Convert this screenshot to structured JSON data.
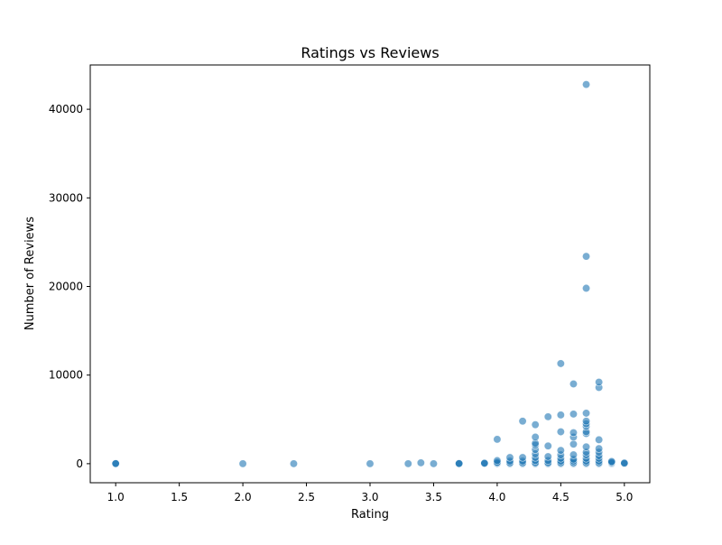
{
  "chart_data": {
    "type": "scatter",
    "title": "Ratings vs Reviews",
    "xlabel": "Rating",
    "ylabel": "Number of Reviews",
    "xlim": [
      0.8,
      5.2
    ],
    "ylim": [
      -2150,
      45000
    ],
    "xticks": [
      1.0,
      1.5,
      2.0,
      2.5,
      3.0,
      3.5,
      4.0,
      4.5,
      5.0
    ],
    "xtick_labels": [
      "1.0",
      "1.5",
      "2.0",
      "2.5",
      "3.0",
      "3.5",
      "4.0",
      "4.5",
      "5.0"
    ],
    "yticks": [
      0,
      10000,
      20000,
      30000,
      40000
    ],
    "ytick_labels": [
      "0",
      "10000",
      "20000",
      "30000",
      "40000"
    ],
    "grid": false,
    "marker_color": "#1f77b4",
    "marker_alpha": 0.6,
    "points": [
      [
        1.0,
        0
      ],
      [
        1.0,
        30
      ],
      [
        1.0,
        10
      ],
      [
        2.0,
        0
      ],
      [
        2.4,
        0
      ],
      [
        3.0,
        0
      ],
      [
        3.3,
        0
      ],
      [
        3.4,
        100
      ],
      [
        3.5,
        0
      ],
      [
        3.7,
        0
      ],
      [
        3.7,
        40
      ],
      [
        3.7,
        10
      ],
      [
        3.9,
        0
      ],
      [
        3.9,
        20
      ],
      [
        3.9,
        60
      ],
      [
        4.0,
        0
      ],
      [
        4.0,
        50
      ],
      [
        4.0,
        150
      ],
      [
        4.0,
        350
      ],
      [
        4.0,
        2750
      ],
      [
        4.1,
        0
      ],
      [
        4.1,
        100
      ],
      [
        4.1,
        300
      ],
      [
        4.1,
        700
      ],
      [
        4.2,
        0
      ],
      [
        4.2,
        100
      ],
      [
        4.2,
        300
      ],
      [
        4.2,
        700
      ],
      [
        4.2,
        4800
      ],
      [
        4.3,
        0
      ],
      [
        4.3,
        100
      ],
      [
        4.3,
        350
      ],
      [
        4.3,
        700
      ],
      [
        4.3,
        1100
      ],
      [
        4.3,
        1600
      ],
      [
        4.3,
        2100
      ],
      [
        4.3,
        2300
      ],
      [
        4.3,
        3000
      ],
      [
        4.3,
        4400
      ],
      [
        4.4,
        0
      ],
      [
        4.4,
        100
      ],
      [
        4.4,
        350
      ],
      [
        4.4,
        800
      ],
      [
        4.4,
        2000
      ],
      [
        4.4,
        5300
      ],
      [
        4.5,
        0
      ],
      [
        4.5,
        100
      ],
      [
        4.5,
        300
      ],
      [
        4.5,
        600
      ],
      [
        4.5,
        1000
      ],
      [
        4.5,
        1500
      ],
      [
        4.5,
        3600
      ],
      [
        4.5,
        5500
      ],
      [
        4.5,
        11300
      ],
      [
        4.6,
        0
      ],
      [
        4.6,
        100
      ],
      [
        4.6,
        300
      ],
      [
        4.6,
        500
      ],
      [
        4.6,
        1000
      ],
      [
        4.6,
        2200
      ],
      [
        4.6,
        3000
      ],
      [
        4.6,
        3500
      ],
      [
        4.6,
        5600
      ],
      [
        4.6,
        9000
      ],
      [
        4.7,
        0
      ],
      [
        4.7,
        100
      ],
      [
        4.7,
        300
      ],
      [
        4.7,
        600
      ],
      [
        4.7,
        1000
      ],
      [
        4.7,
        1300
      ],
      [
        4.7,
        1900
      ],
      [
        4.7,
        3400
      ],
      [
        4.7,
        3600
      ],
      [
        4.7,
        4200
      ],
      [
        4.7,
        4500
      ],
      [
        4.7,
        4800
      ],
      [
        4.7,
        5700
      ],
      [
        4.7,
        19800
      ],
      [
        4.7,
        23400
      ],
      [
        4.7,
        42800
      ],
      [
        4.8,
        0
      ],
      [
        4.8,
        100
      ],
      [
        4.8,
        300
      ],
      [
        4.8,
        600
      ],
      [
        4.8,
        900
      ],
      [
        4.8,
        1300
      ],
      [
        4.8,
        1700
      ],
      [
        4.8,
        2700
      ],
      [
        4.8,
        8600
      ],
      [
        4.8,
        9200
      ],
      [
        4.9,
        0
      ],
      [
        4.9,
        80
      ],
      [
        4.9,
        150
      ],
      [
        4.9,
        250
      ],
      [
        5.0,
        0
      ],
      [
        5.0,
        30
      ],
      [
        5.0,
        80
      ]
    ]
  }
}
